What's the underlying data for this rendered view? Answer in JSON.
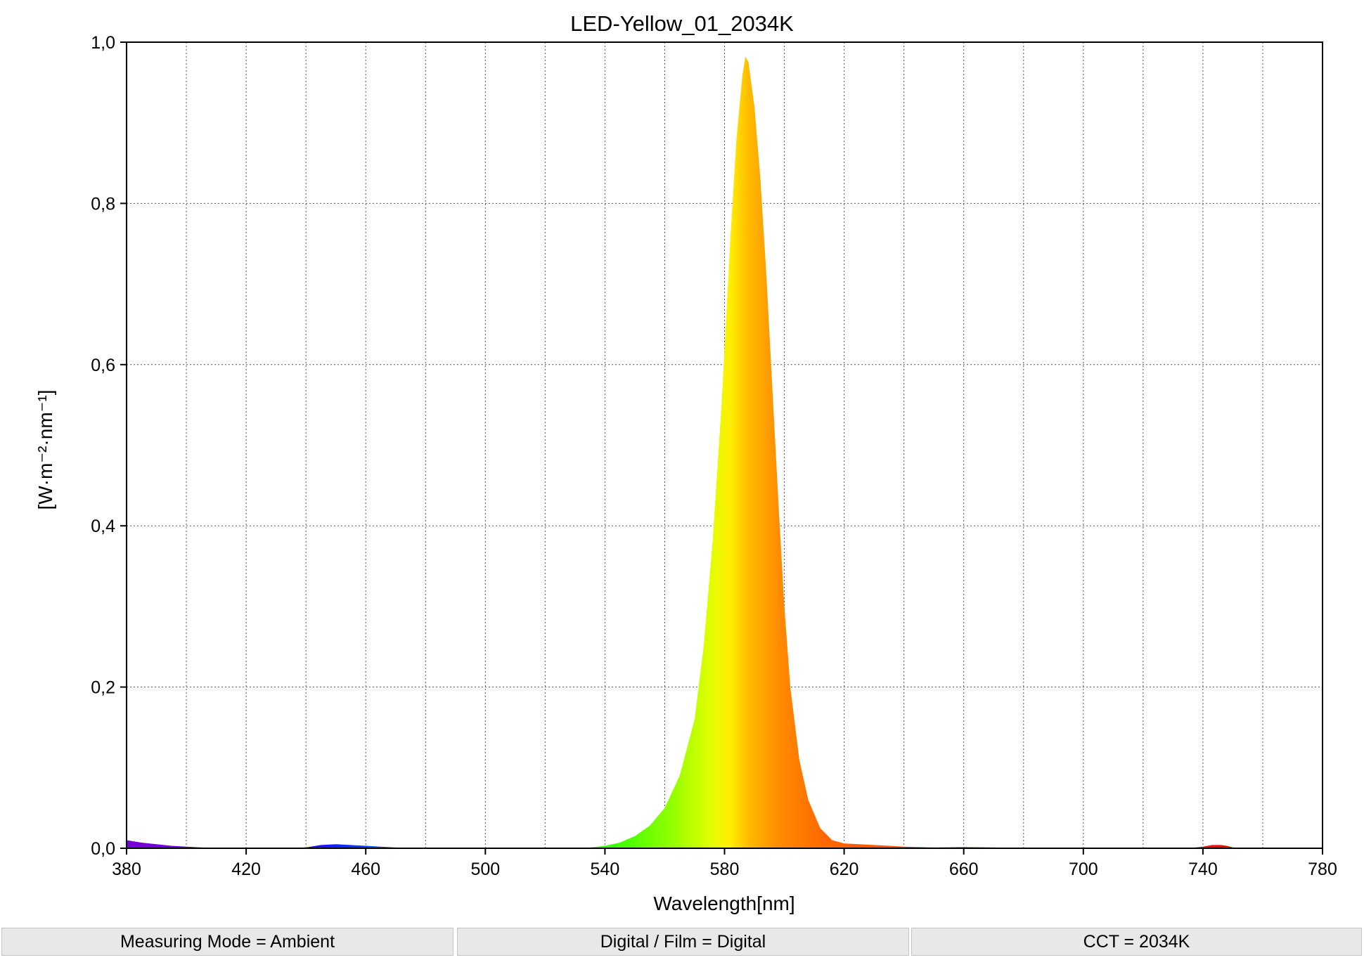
{
  "chart_data": {
    "type": "area",
    "title": "LED-Yellow_01_2034K",
    "xlabel": "Wavelength[nm]",
    "ylabel": "[W·m⁻²·nm⁻¹]",
    "xlim": [
      380,
      780
    ],
    "ylim": [
      0,
      1.0
    ],
    "x_ticks": [
      380,
      420,
      460,
      500,
      540,
      580,
      620,
      660,
      700,
      740,
      780
    ],
    "x_tick_labels": [
      "380",
      "420",
      "460",
      "500",
      "540",
      "580",
      "620",
      "660",
      "700",
      "740",
      "780"
    ],
    "y_ticks": [
      0,
      0.2,
      0.4,
      0.6,
      0.8,
      1.0
    ],
    "y_tick_labels": [
      "0,0",
      "0,2",
      "0,4",
      "0,6",
      "0,8",
      "1,0"
    ],
    "grid": true,
    "fill": "spectral-color-gradient",
    "series": [
      {
        "x": [
          380,
          385,
          390,
          395,
          400,
          405,
          420,
          440,
          445,
          450,
          455,
          460,
          465,
          470,
          475,
          480,
          500,
          520,
          535,
          540,
          545,
          550,
          555,
          560,
          565,
          570,
          573,
          576,
          579,
          582,
          584,
          586,
          587,
          588,
          590,
          592,
          594,
          596,
          598,
          600,
          602,
          605,
          608,
          612,
          616,
          620,
          625,
          630,
          635,
          640,
          650,
          660,
          670,
          690,
          700,
          720,
          735,
          740,
          743,
          746,
          748,
          750,
          755,
          780
        ],
        "y": [
          0.01,
          0.007,
          0.005,
          0.003,
          0.002,
          0.001,
          0.0,
          0.001,
          0.004,
          0.005,
          0.004,
          0.003,
          0.002,
          0.001,
          0.0,
          0.0,
          0.0,
          0.0,
          0.001,
          0.003,
          0.007,
          0.015,
          0.028,
          0.05,
          0.09,
          0.16,
          0.25,
          0.38,
          0.55,
          0.76,
          0.88,
          0.96,
          0.982,
          0.975,
          0.92,
          0.83,
          0.71,
          0.57,
          0.43,
          0.3,
          0.2,
          0.11,
          0.06,
          0.025,
          0.01,
          0.006,
          0.005,
          0.004,
          0.003,
          0.002,
          0.001,
          0.0015,
          0.001,
          0.0,
          0.001,
          0.0,
          0.0,
          0.002,
          0.004,
          0.004,
          0.003,
          0.001,
          0.0,
          0.0
        ]
      }
    ]
  },
  "status": {
    "measuring_mode": "Measuring Mode = Ambient",
    "digital_film": "Digital / Film = Digital",
    "cct": "CCT = 2034K"
  }
}
